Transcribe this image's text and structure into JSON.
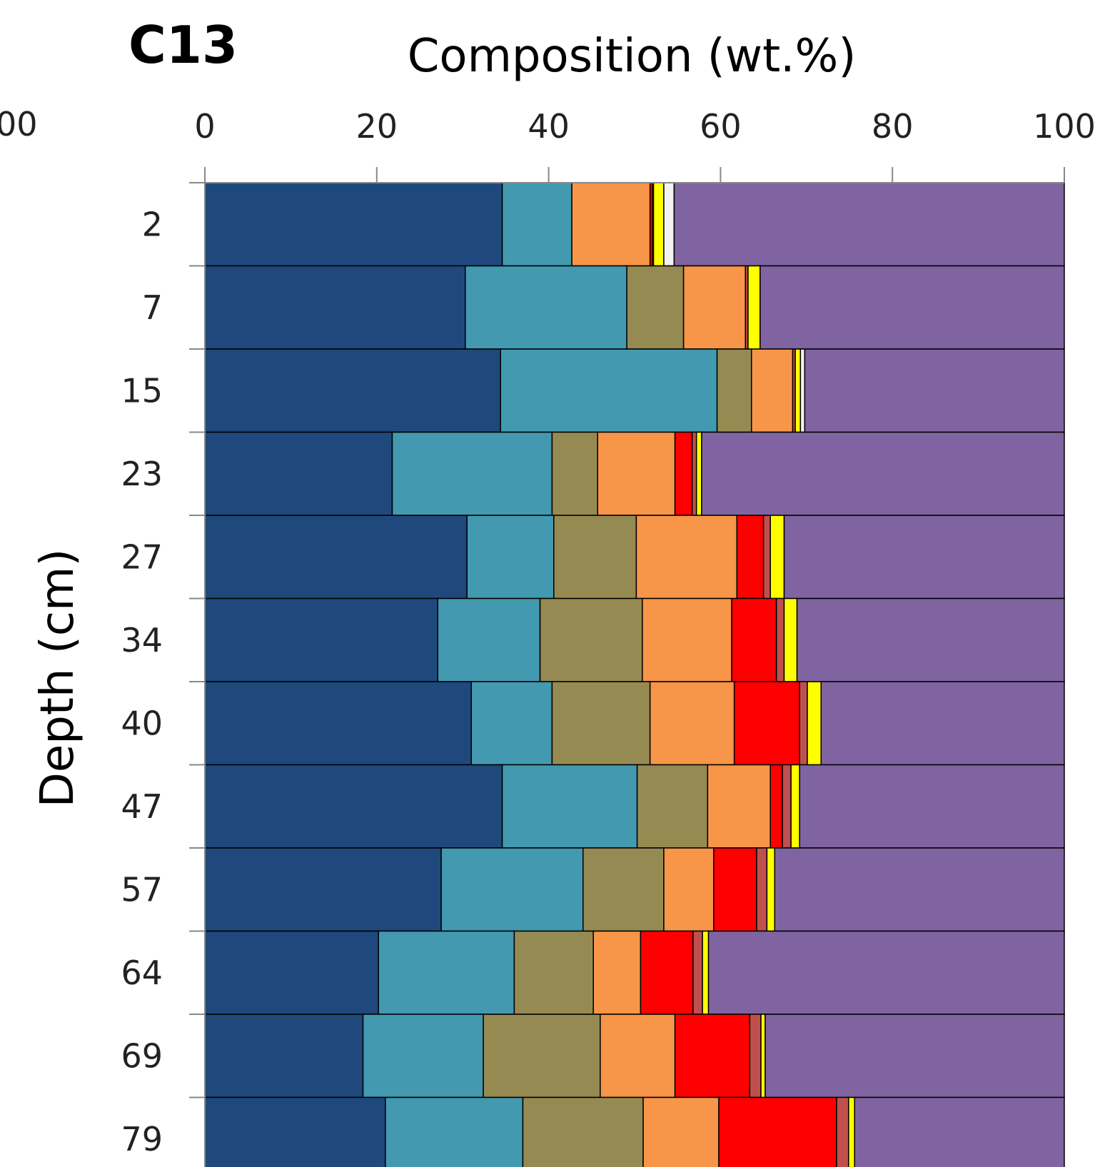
{
  "panel_label": "C13",
  "left_cut_tick": "00",
  "chart_data": {
    "type": "bar",
    "orientation": "horizontal",
    "stacked": true,
    "title": "",
    "xlabel": "Composition (wt.%)",
    "ylabel": "Depth (cm)",
    "xlim": [
      0,
      100
    ],
    "x_ticks": [
      "0",
      "20",
      "40",
      "60",
      "80",
      "100"
    ],
    "x_axis_position": "top",
    "grid": false,
    "legend": "none",
    "categories": [
      "2",
      "7",
      "15",
      "23",
      "27",
      "34",
      "40",
      "47",
      "57",
      "64",
      "69",
      "79"
    ],
    "series": [
      {
        "color": "#1F497D",
        "values": [
          34.6,
          30.3,
          34.4,
          21.8,
          30.5,
          27.1,
          31.0,
          34.6,
          27.5,
          20.2,
          18.4,
          21.0
        ]
      },
      {
        "color": "#4399AF",
        "values": [
          8.1,
          18.8,
          25.2,
          18.6,
          10.1,
          11.9,
          9.4,
          15.7,
          16.5,
          15.8,
          14.0,
          16.0
        ]
      },
      {
        "color": "#958B52",
        "values": [
          0.0,
          6.6,
          4.0,
          5.3,
          9.6,
          11.9,
          11.4,
          8.2,
          9.4,
          9.2,
          13.6,
          14.0
        ]
      },
      {
        "color": "#F79548",
        "values": [
          9.1,
          7.2,
          4.8,
          9.0,
          11.7,
          10.4,
          9.8,
          7.3,
          5.8,
          5.5,
          8.7,
          8.8
        ]
      },
      {
        "color": "#FF0000",
        "values": [
          0.3,
          0.0,
          0.0,
          2.0,
          3.1,
          5.2,
          7.6,
          1.4,
          5.0,
          6.1,
          8.7,
          13.7
        ]
      },
      {
        "color": "#C0504D",
        "values": [
          0.1,
          0.3,
          0.3,
          0.5,
          0.8,
          0.9,
          0.9,
          1.0,
          1.2,
          1.1,
          1.3,
          1.4
        ]
      },
      {
        "color": "#FFFF00",
        "values": [
          1.2,
          1.4,
          0.6,
          0.6,
          1.6,
          1.5,
          1.6,
          1.0,
          0.9,
          0.7,
          0.5,
          0.7
        ]
      },
      {
        "color": "#F2F2F2",
        "values": [
          1.2,
          0.0,
          0.5,
          0.0,
          0.0,
          0.0,
          0.0,
          0.0,
          0.0,
          0.0,
          0.0,
          0.0
        ]
      },
      {
        "color": "#8064A2",
        "values": [
          45.4,
          35.4,
          30.2,
          42.2,
          32.6,
          31.1,
          28.3,
          30.8,
          33.7,
          41.4,
          34.8,
          24.4
        ]
      }
    ]
  }
}
